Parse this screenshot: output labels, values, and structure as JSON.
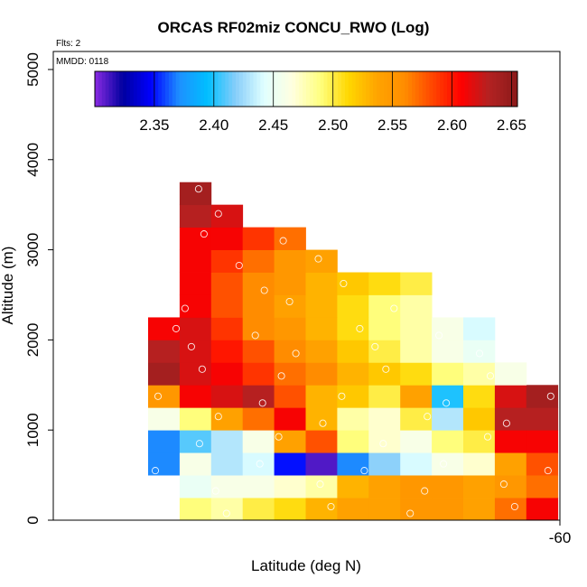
{
  "chart_data": {
    "type": "heatmap",
    "title": "ORCAS RF02miz CONCU_RWO (Log)",
    "xlabel": "Latitude (deg N)",
    "ylabel": "Altitude (m)",
    "flights_label": "Flts: 2",
    "date_label": "MMDD: 0118",
    "x_tick_labels": [
      "-60"
    ],
    "y_ticks": [
      0,
      1000,
      2000,
      3000,
      4000,
      5000
    ],
    "y_tick_labels": [
      "0",
      "1000",
      "2000",
      "3000",
      "4000",
      "5000"
    ],
    "ylim": [
      0,
      5200
    ],
    "colorbar": {
      "range": [
        2.3,
        2.655
      ],
      "ticks": [
        2.35,
        2.4,
        2.45,
        2.5,
        2.55,
        2.6,
        2.65
      ],
      "tick_labels": [
        "2.35",
        "2.40",
        "2.45",
        "2.50",
        "2.55",
        "2.60",
        "2.65"
      ],
      "colors": [
        "#8a2be2",
        "#0000a0",
        "#0000ff",
        "#1e90ff",
        "#00bfff",
        "#87cefa",
        "#e0ffff",
        "#ffffe0",
        "#ffff80",
        "#ffd700",
        "#ffa500",
        "#ff8c00",
        "#ff4500",
        "#ff0000",
        "#b22222",
        "#8b1a1a"
      ]
    },
    "grid": {
      "n_cols": 13,
      "y_bins": [
        0,
        250,
        500,
        750,
        1000,
        1250,
        1500,
        1750,
        2000,
        2250,
        2500,
        2750,
        3000,
        3250,
        3500,
        3750
      ],
      "cells": [
        [
          1,
          0,
          2.49
        ],
        [
          2,
          0,
          2.48
        ],
        [
          3,
          0,
          2.5
        ],
        [
          4,
          0,
          2.51
        ],
        [
          5,
          0,
          2.53
        ],
        [
          6,
          0,
          2.54
        ],
        [
          7,
          0,
          2.54
        ],
        [
          8,
          0,
          2.55
        ],
        [
          9,
          0,
          2.55
        ],
        [
          10,
          0,
          2.54
        ],
        [
          11,
          0,
          2.57
        ],
        [
          12,
          0,
          2.61
        ],
        [
          1,
          1,
          2.45
        ],
        [
          2,
          1,
          2.46
        ],
        [
          3,
          1,
          2.46
        ],
        [
          4,
          1,
          2.47
        ],
        [
          5,
          1,
          2.48
        ],
        [
          6,
          1,
          2.53
        ],
        [
          7,
          1,
          2.54
        ],
        [
          8,
          1,
          2.55
        ],
        [
          9,
          1,
          2.55
        ],
        [
          10,
          1,
          2.54
        ],
        [
          11,
          1,
          2.55
        ],
        [
          12,
          1,
          2.57
        ],
        [
          0,
          2,
          2.37
        ],
        [
          1,
          2,
          2.46
        ],
        [
          2,
          2,
          2.43
        ],
        [
          3,
          2,
          2.44
        ],
        [
          4,
          2,
          2.35
        ],
        [
          5,
          2,
          2.31
        ],
        [
          6,
          2,
          2.37
        ],
        [
          7,
          2,
          2.42
        ],
        [
          8,
          2,
          2.44
        ],
        [
          9,
          2,
          2.46
        ],
        [
          10,
          2,
          2.47
        ],
        [
          11,
          2,
          2.54
        ],
        [
          12,
          2,
          2.58
        ],
        [
          0,
          3,
          2.37
        ],
        [
          1,
          3,
          2.41
        ],
        [
          2,
          3,
          2.43
        ],
        [
          3,
          3,
          2.46
        ],
        [
          4,
          3,
          2.54
        ],
        [
          5,
          3,
          2.58
        ],
        [
          6,
          3,
          2.49
        ],
        [
          7,
          3,
          2.47
        ],
        [
          8,
          3,
          2.46
        ],
        [
          9,
          3,
          2.49
        ],
        [
          10,
          3,
          2.5
        ],
        [
          11,
          3,
          2.61
        ],
        [
          12,
          3,
          2.61
        ],
        [
          0,
          4,
          2.46
        ],
        [
          1,
          4,
          2.49
        ],
        [
          2,
          4,
          2.54
        ],
        [
          3,
          4,
          2.57
        ],
        [
          4,
          4,
          2.61
        ],
        [
          5,
          4,
          2.53
        ],
        [
          6,
          4,
          2.48
        ],
        [
          7,
          4,
          2.47
        ],
        [
          8,
          4,
          2.5
        ],
        [
          9,
          4,
          2.43
        ],
        [
          10,
          4,
          2.52
        ],
        [
          11,
          4,
          2.63
        ],
        [
          12,
          4,
          2.63
        ],
        [
          0,
          5,
          2.55
        ],
        [
          1,
          5,
          2.61
        ],
        [
          2,
          5,
          2.62
        ],
        [
          3,
          5,
          2.63
        ],
        [
          4,
          5,
          2.58
        ],
        [
          5,
          5,
          2.53
        ],
        [
          6,
          5,
          2.52
        ],
        [
          7,
          5,
          2.5
        ],
        [
          8,
          5,
          2.54
        ],
        [
          9,
          5,
          2.4
        ],
        [
          10,
          5,
          2.51
        ],
        [
          11,
          5,
          2.62
        ],
        [
          12,
          5,
          2.64
        ],
        [
          0,
          6,
          2.64
        ],
        [
          1,
          6,
          2.62
        ],
        [
          2,
          6,
          2.61
        ],
        [
          3,
          6,
          2.59
        ],
        [
          4,
          6,
          2.57
        ],
        [
          5,
          6,
          2.56
        ],
        [
          6,
          6,
          2.53
        ],
        [
          7,
          6,
          2.52
        ],
        [
          8,
          6,
          2.51
        ],
        [
          9,
          6,
          2.49
        ],
        [
          10,
          6,
          2.48
        ],
        [
          11,
          6,
          2.46
        ],
        [
          0,
          7,
          2.63
        ],
        [
          1,
          7,
          2.62
        ],
        [
          2,
          7,
          2.6
        ],
        [
          3,
          7,
          2.58
        ],
        [
          4,
          7,
          2.56
        ],
        [
          5,
          7,
          2.54
        ],
        [
          6,
          7,
          2.52
        ],
        [
          7,
          7,
          2.5
        ],
        [
          8,
          7,
          2.48
        ],
        [
          9,
          7,
          2.46
        ],
        [
          10,
          7,
          2.45
        ],
        [
          0,
          8,
          2.61
        ],
        [
          1,
          8,
          2.62
        ],
        [
          2,
          8,
          2.59
        ],
        [
          3,
          8,
          2.56
        ],
        [
          4,
          8,
          2.55
        ],
        [
          5,
          8,
          2.53
        ],
        [
          6,
          8,
          2.51
        ],
        [
          7,
          8,
          2.49
        ],
        [
          8,
          8,
          2.48
        ],
        [
          9,
          8,
          2.46
        ],
        [
          10,
          8,
          2.44
        ],
        [
          1,
          9,
          2.61
        ],
        [
          2,
          9,
          2.58
        ],
        [
          3,
          9,
          2.56
        ],
        [
          4,
          9,
          2.54
        ],
        [
          5,
          9,
          2.53
        ],
        [
          6,
          9,
          2.51
        ],
        [
          7,
          9,
          2.49
        ],
        [
          8,
          9,
          2.48
        ],
        [
          1,
          10,
          2.61
        ],
        [
          2,
          10,
          2.58
        ],
        [
          3,
          10,
          2.56
        ],
        [
          4,
          10,
          2.55
        ],
        [
          5,
          10,
          2.53
        ],
        [
          6,
          10,
          2.52
        ],
        [
          7,
          10,
          2.51
        ],
        [
          8,
          10,
          2.5
        ],
        [
          1,
          11,
          2.61
        ],
        [
          2,
          11,
          2.59
        ],
        [
          3,
          11,
          2.57
        ],
        [
          4,
          11,
          2.55
        ],
        [
          5,
          11,
          2.54
        ],
        [
          1,
          12,
          2.61
        ],
        [
          2,
          12,
          2.61
        ],
        [
          3,
          12,
          2.59
        ],
        [
          4,
          12,
          2.57
        ],
        [
          1,
          13,
          2.63
        ],
        [
          2,
          13,
          2.62
        ],
        [
          1,
          14,
          2.64
        ]
      ]
    }
  }
}
